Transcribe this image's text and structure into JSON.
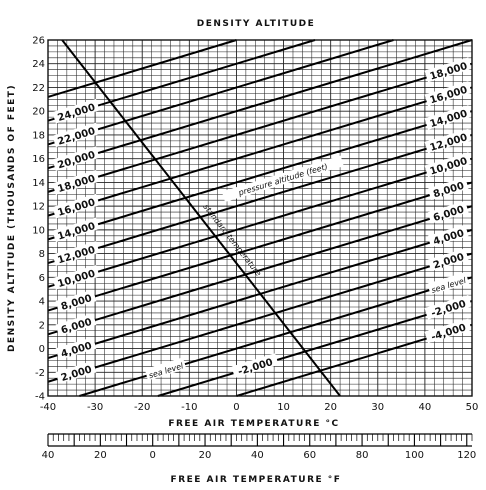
{
  "chart_data": {
    "type": "line",
    "title": "DENSITY ALTITUDE",
    "ylabel": "DENSITY ALTITUDE (THOUSANDS OF FEET)",
    "xlabel": "FREE AIR TEMPERATURE °C",
    "x2label": "FREE AIR TEMPERATURE °F",
    "xlim": [
      -40,
      50
    ],
    "ylim": [
      -4,
      26
    ],
    "f_lim": [
      -40,
      122
    ],
    "grid": true,
    "x_ticks": [
      -40,
      -30,
      -20,
      -10,
      0,
      10,
      20,
      30,
      40,
      50
    ],
    "y_ticks": [
      -4,
      -2,
      0,
      2,
      4,
      6,
      8,
      10,
      12,
      14,
      16,
      18,
      20,
      22,
      24,
      26
    ],
    "y_tick_labels": [
      "-4",
      "-2",
      "0",
      "2",
      "4",
      "6",
      "8",
      "10",
      "12",
      "14",
      "16",
      "18",
      "20",
      "22",
      "24",
      "26"
    ],
    "f_ticks": [
      -40,
      -20,
      0,
      20,
      40,
      60,
      80,
      100,
      120
    ],
    "f_tick_labels": [
      "40",
      "20",
      "0",
      "20",
      "40",
      "60",
      "80",
      "100",
      "120"
    ],
    "pressure_altitude_slope_per_degC": 0.12,
    "pressure_altitude_lines": [
      {
        "pa": -4000,
        "label": "-4,000",
        "label_side": "right"
      },
      {
        "pa": -2000,
        "label": "-2,000",
        "label_side": "right"
      },
      {
        "pa": 0,
        "label": "sea level",
        "label_side": "right"
      },
      {
        "pa": 2000,
        "label": "2,000",
        "label_side": "right"
      },
      {
        "pa": 4000,
        "label": "4,000",
        "label_side": "right"
      },
      {
        "pa": 6000,
        "label": "6,000",
        "label_side": "right"
      },
      {
        "pa": 8000,
        "label": "8,000",
        "label_side": "right"
      },
      {
        "pa": 10000,
        "label": "10,000",
        "label_side": "right"
      },
      {
        "pa": 12000,
        "label": "12,000",
        "label_side": "right"
      },
      {
        "pa": 14000,
        "label": "14,000",
        "label_side": "right"
      },
      {
        "pa": 16000,
        "label": "16,000",
        "label_side": "right"
      },
      {
        "pa": 18000,
        "label": "18,000",
        "label_side": "right"
      },
      {
        "pa": -2000,
        "label": "-2,000",
        "label_side": "bottom"
      },
      {
        "pa": 0,
        "label": "sea level",
        "label_side": "bottom"
      },
      {
        "pa": 2000,
        "label": "2,000",
        "label_side": "left"
      },
      {
        "pa": 4000,
        "label": "4,000",
        "label_side": "left"
      },
      {
        "pa": 6000,
        "label": "6,000",
        "label_side": "left"
      },
      {
        "pa": 8000,
        "label": "8,000",
        "label_side": "left"
      },
      {
        "pa": 10000,
        "label": "10,000",
        "label_side": "left"
      },
      {
        "pa": 12000,
        "label": "12,000",
        "label_side": "left"
      },
      {
        "pa": 14000,
        "label": "14,000",
        "label_side": "left"
      },
      {
        "pa": 16000,
        "label": "16,000",
        "label_side": "left"
      },
      {
        "pa": 18000,
        "label": "18,000",
        "label_side": "left"
      },
      {
        "pa": 20000,
        "label": "20,000",
        "label_side": "left"
      },
      {
        "pa": 22000,
        "label": "22,000",
        "label_side": "left"
      },
      {
        "pa": 24000,
        "label": "24,000",
        "label_side": "left"
      },
      {
        "pa": 26000,
        "label": "",
        "label_side": "left"
      }
    ],
    "pressure_altitude_caption": "pressure altitude (feet)",
    "standard_temperature": {
      "label": "standard temperature",
      "points": [
        [
          -37,
          26
        ],
        [
          22,
          -4
        ]
      ]
    }
  }
}
